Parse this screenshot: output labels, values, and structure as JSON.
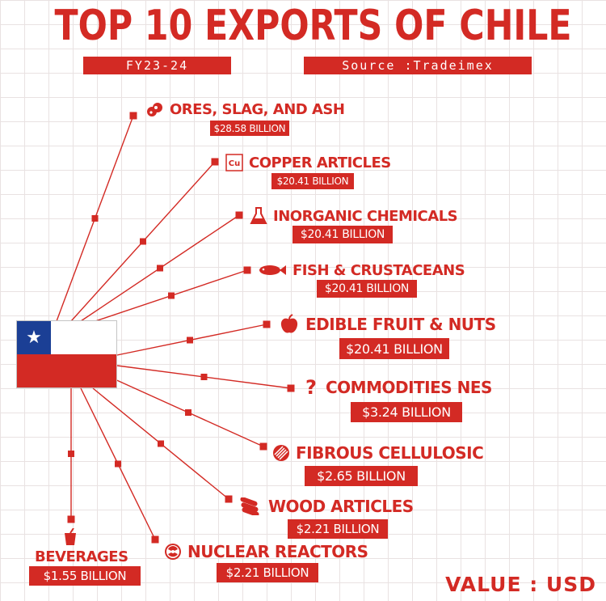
{
  "title": "TOP 10 EXPORTS OF CHILE",
  "period": "FY23-24",
  "source": "Source :Tradeimex",
  "footer": "VALUE : USD",
  "colors": {
    "accent": "#d32a24",
    "flag_blue": "#1b3f95",
    "grid": "#e9e2e2"
  },
  "items": [
    {
      "label": "ORES, SLAG, AND ASH",
      "value": "$28.58 BILLION",
      "icon": "ore-icon"
    },
    {
      "label": "COPPER ARTICLES",
      "value": "$20.41 BILLION",
      "icon": "copper-element-icon",
      "icon_text": "Cu"
    },
    {
      "label": "INORGANIC CHEMICALS",
      "value": "$20.41 BILLION",
      "icon": "flask-icon"
    },
    {
      "label": "FISH & CRUSTACEANS",
      "value": "$20.41 BILLION",
      "icon": "fish-icon"
    },
    {
      "label": "EDIBLE FRUIT & NUTS",
      "value": "$20.41 BILLION",
      "icon": "apple-icon"
    },
    {
      "label": "COMMODITIES NES",
      "value": "$3.24 BILLION",
      "icon": "question-icon",
      "icon_text": "?"
    },
    {
      "label": "FIBROUS CELLULOSIC",
      "value": "$2.65 BILLION",
      "icon": "fiber-icon"
    },
    {
      "label": "WOOD ARTICLES",
      "value": "$2.21 BILLION",
      "icon": "wood-logs-icon"
    },
    {
      "label": "NUCLEAR REACTORS",
      "value": "$2.21 BILLION",
      "icon": "reactor-icon"
    },
    {
      "label": "BEVERAGES",
      "value": "$1.55 BILLION",
      "icon": "drink-icon"
    }
  ]
}
